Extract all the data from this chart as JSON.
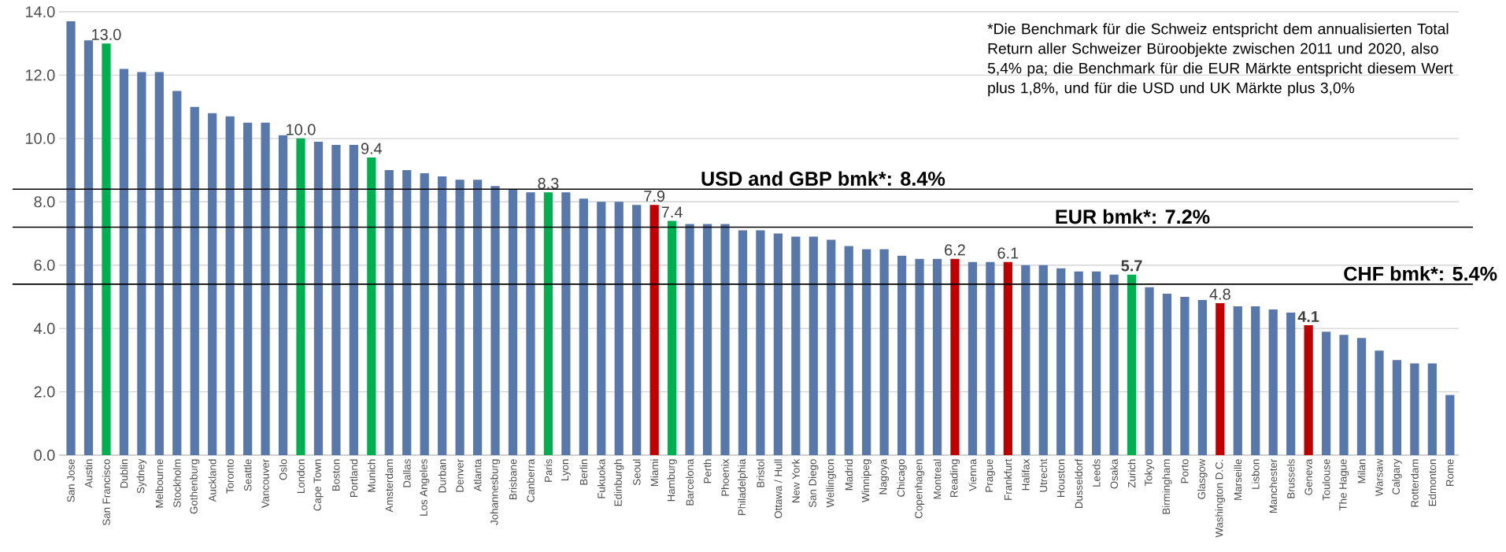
{
  "chart_data": {
    "type": "bar",
    "categories": [
      "San Jose",
      "Austin",
      "San Francisco",
      "Dublin",
      "Sydney",
      "Melbourne",
      "Stockholm",
      "Gothenburg",
      "Auckland",
      "Toronto",
      "Seattle",
      "Vancouver",
      "Oslo",
      "London",
      "Cape Town",
      "Boston",
      "Portland",
      "Munich",
      "Amsterdam",
      "Dallas",
      "Los Angeles",
      "Durban",
      "Denver",
      "Atlanta",
      "Johannesburg",
      "Brisbane",
      "Canberra",
      "Paris",
      "Lyon",
      "Berlin",
      "Fukuoka",
      "Edinburgh",
      "Seoul",
      "Miami",
      "Hamburg",
      "Barcelona",
      "Perth",
      "Phoenix",
      "Philadelphia",
      "Bristol",
      "Ottawa / Hull",
      "New York",
      "San Diego",
      "Wellington",
      "Madrid",
      "Winnipeg",
      "Nagoya",
      "Chicago",
      "Copenhagen",
      "Montreal",
      "Reading",
      "Vienna",
      "Prague",
      "Frankfurt",
      "Halifax",
      "Utrecht",
      "Houston",
      "Dusseldorf",
      "Leeds",
      "Osaka",
      "Zurich",
      "Tokyo",
      "Birmingham",
      "Porto",
      "Glasgow",
      "Washington D.C.",
      "Marseille",
      "Lisbon",
      "Manchester",
      "Brussels",
      "Geneva",
      "Toulouse",
      "The Hague",
      "Milan",
      "Warsaw",
      "Calgary",
      "Rotterdam",
      "Edmonton",
      "Rome"
    ],
    "values": [
      13.7,
      13.1,
      13.0,
      12.2,
      12.1,
      12.1,
      11.5,
      11.0,
      10.8,
      10.7,
      10.5,
      10.5,
      10.1,
      10.0,
      9.9,
      9.8,
      9.8,
      9.4,
      9.0,
      9.0,
      8.9,
      8.8,
      8.7,
      8.7,
      8.5,
      8.4,
      8.3,
      8.3,
      8.3,
      8.1,
      8.0,
      8.0,
      7.9,
      7.9,
      7.4,
      7.3,
      7.3,
      7.3,
      7.1,
      7.1,
      7.0,
      6.9,
      6.9,
      6.8,
      6.6,
      6.5,
      6.5,
      6.3,
      6.2,
      6.2,
      6.2,
      6.1,
      6.1,
      6.1,
      6.0,
      6.0,
      5.9,
      5.8,
      5.8,
      5.7,
      5.7,
      5.3,
      5.1,
      5.0,
      4.9,
      4.8,
      4.7,
      4.7,
      4.6,
      4.5,
      4.1,
      3.9,
      3.8,
      3.7,
      3.3,
      3.0,
      2.9,
      2.9,
      1.9
    ],
    "colors": [
      "#5877aa",
      "#5877aa",
      "#00b050",
      "#5877aa",
      "#5877aa",
      "#5877aa",
      "#5877aa",
      "#5877aa",
      "#5877aa",
      "#5877aa",
      "#5877aa",
      "#5877aa",
      "#5877aa",
      "#00b050",
      "#5877aa",
      "#5877aa",
      "#5877aa",
      "#00b050",
      "#5877aa",
      "#5877aa",
      "#5877aa",
      "#5877aa",
      "#5877aa",
      "#5877aa",
      "#5877aa",
      "#5877aa",
      "#5877aa",
      "#00b050",
      "#5877aa",
      "#5877aa",
      "#5877aa",
      "#5877aa",
      "#5877aa",
      "#c00000",
      "#00b050",
      "#5877aa",
      "#5877aa",
      "#5877aa",
      "#5877aa",
      "#5877aa",
      "#5877aa",
      "#5877aa",
      "#5877aa",
      "#5877aa",
      "#5877aa",
      "#5877aa",
      "#5877aa",
      "#5877aa",
      "#5877aa",
      "#5877aa",
      "#c00000",
      "#5877aa",
      "#5877aa",
      "#c00000",
      "#5877aa",
      "#5877aa",
      "#5877aa",
      "#5877aa",
      "#5877aa",
      "#5877aa",
      "#00b050",
      "#5877aa",
      "#5877aa",
      "#5877aa",
      "#5877aa",
      "#c00000",
      "#5877aa",
      "#5877aa",
      "#5877aa",
      "#5877aa",
      "#c00000",
      "#5877aa",
      "#5877aa",
      "#5877aa",
      "#5877aa",
      "#5877aa",
      "#5877aa",
      "#5877aa",
      "#5877aa"
    ],
    "value_labels": [
      null,
      null,
      "13.0",
      null,
      null,
      null,
      null,
      null,
      null,
      null,
      null,
      null,
      null,
      "10.0",
      null,
      null,
      null,
      "9.4",
      null,
      null,
      null,
      null,
      null,
      null,
      null,
      null,
      null,
      "8.3",
      null,
      null,
      null,
      null,
      null,
      "7.9",
      "7.4",
      null,
      null,
      null,
      null,
      null,
      null,
      null,
      null,
      null,
      null,
      null,
      null,
      null,
      null,
      null,
      "6.2",
      null,
      null,
      "6.1",
      null,
      null,
      null,
      null,
      null,
      null,
      "**5.7**",
      null,
      null,
      null,
      null,
      "4.8",
      null,
      null,
      null,
      null,
      "**4.1**",
      null,
      null,
      null,
      null,
      null,
      null,
      null,
      null
    ],
    "ylim": [
      0,
      14
    ],
    "yticks": [
      {
        "value": 0,
        "label": "0.0"
      },
      {
        "value": 2,
        "label": "2.0"
      },
      {
        "value": 4,
        "label": "4.0"
      },
      {
        "value": 6,
        "label": "6.0"
      },
      {
        "value": 8,
        "label": "8.0"
      },
      {
        "value": 10,
        "label": "10.0"
      },
      {
        "value": 12,
        "label": "12.0"
      },
      {
        "value": 14,
        "label": "14.0"
      }
    ],
    "grid": "y",
    "ref_lines": [
      {
        "axis": "y",
        "value": 8.4,
        "label": "USD and GBP bmk*: 8.4%"
      },
      {
        "axis": "y",
        "value": 7.2,
        "label": "EUR bmk*: 7.2%"
      },
      {
        "axis": "y",
        "value": 5.4,
        "label": "CHF bmk*: 5.4%"
      }
    ],
    "annotations": [
      "*Die Benchmark für die Schweiz entspricht dem annualisierten Total Return aller Schweizer Büroobjekte zwischen 2011 und 2020, also 5,4% pa; die Benchmark für die EUR Märkte entspricht diesem Wert plus 1,8%, und für die USD und UK Märkte plus 3,0%"
    ]
  }
}
